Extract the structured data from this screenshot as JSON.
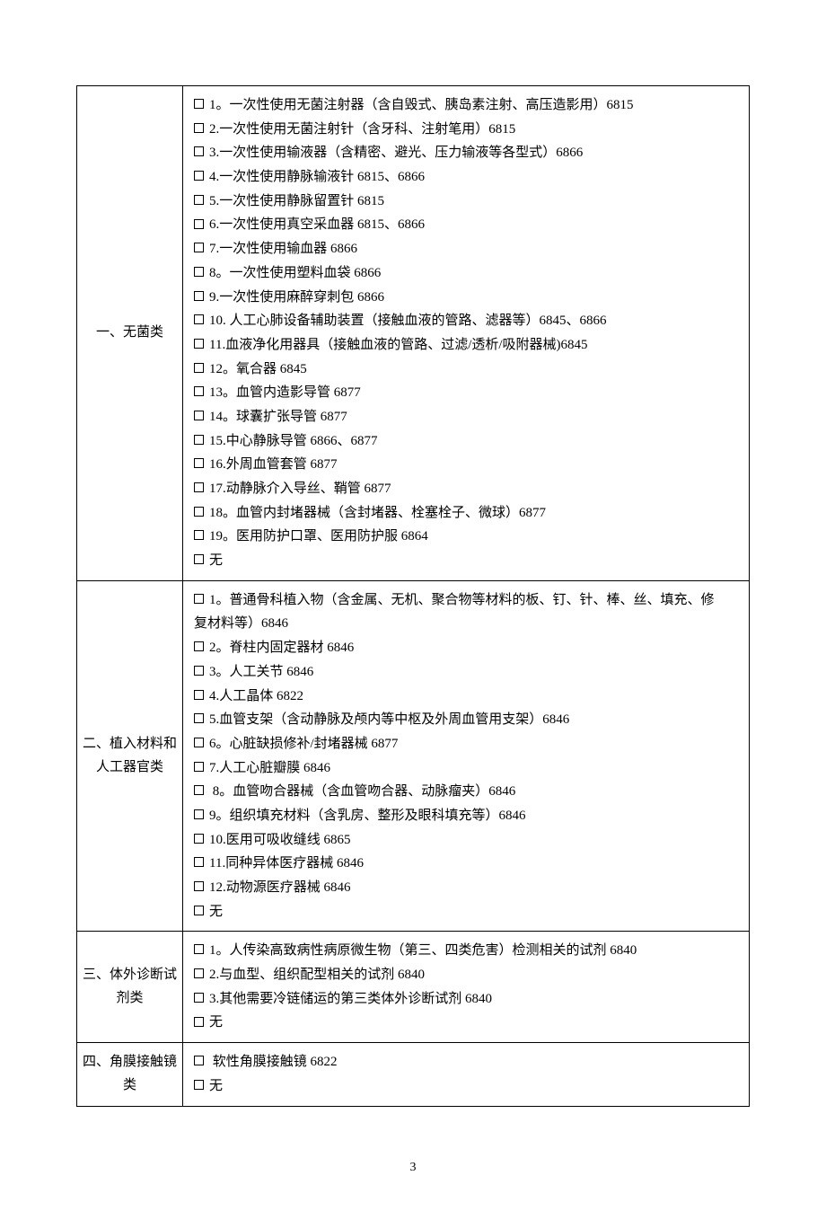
{
  "page_number": "3",
  "sections": [
    {
      "category": "一、无菌类",
      "items": [
        "1。一次性使用无菌注射器（含自毁式、胰岛素注射、高压造影用）6815",
        "2.一次性使用无菌注射针（含牙科、注射笔用）6815",
        "3.一次性使用输液器（含精密、避光、压力输液等各型式）6866",
        "4.一次性使用静脉输液针 6815、6866",
        "5.一次性使用静脉留置针 6815",
        "6.一次性使用真空采血器 6815、6866",
        "7.一次性使用输血器 6866",
        "8。一次性使用塑料血袋 6866",
        "9.一次性使用麻醉穿刺包 6866",
        "10. 人工心肺设备辅助装置（接触血液的管路、滤器等）6845、6866",
        "11.血液净化用器具（接触血液的管路、过滤/透析/吸附器械)6845",
        "12。氧合器 6845",
        "13。血管内造影导管 6877",
        "14。球囊扩张导管 6877",
        "15.中心静脉导管 6866、6877",
        "16.外周血管套管 6877",
        "17.动静脉介入导丝、鞘管 6877",
        "18。血管内封堵器械（含封堵器、栓塞栓子、微球）6877",
        "19。医用防护口罩、医用防护服 6864",
        "无"
      ]
    },
    {
      "category": "二、植入材料和人工器官类",
      "items_raw": [
        {
          "prefix": "",
          "text": "1。普通骨科植入物（含金属、无机、聚合物等材料的板、钉、针、棒、丝、填充、修",
          "has_checkbox": true
        },
        {
          "prefix": "",
          "text": "复材料等）6846",
          "has_checkbox": false,
          "continuation": true
        },
        {
          "prefix": "",
          "text": "2。脊柱内固定器材 6846",
          "has_checkbox": true
        },
        {
          "prefix": "",
          "text": "3。人工关节 6846",
          "has_checkbox": true
        },
        {
          "prefix": "",
          "text": "4.人工晶体 6822",
          "has_checkbox": true
        },
        {
          "prefix": "",
          "text": "5.血管支架（含动静脉及颅内等中枢及外周血管用支架）6846",
          "has_checkbox": true
        },
        {
          "prefix": "",
          "text": "6。心脏缺损修补/封堵器械 6877",
          "has_checkbox": true
        },
        {
          "prefix": "",
          "text": "7.人工心脏瓣膜 6846",
          "has_checkbox": true
        },
        {
          "prefix": " ",
          "text": "8。血管吻合器械（含血管吻合器、动脉瘤夹）6846",
          "has_checkbox": true
        },
        {
          "prefix": "",
          "text": "9。组织填充材料（含乳房、整形及眼科填充等）6846",
          "has_checkbox": true
        },
        {
          "prefix": "",
          "text": "10.医用可吸收缝线 6865",
          "has_checkbox": true
        },
        {
          "prefix": "",
          "text": "11.同种异体医疗器械 6846",
          "has_checkbox": true
        },
        {
          "prefix": "",
          "text": "12.动物源医疗器械 6846",
          "has_checkbox": true
        },
        {
          "prefix": "",
          "text": "无",
          "has_checkbox": true
        }
      ]
    },
    {
      "category": "三、体外诊断试剂类",
      "items": [
        "1。人传染高致病性病原微生物（第三、四类危害）检测相关的试剂 6840",
        "2.与血型、组织配型相关的试剂 6840",
        "3.其他需要冷链储运的第三类体外诊断试剂 6840",
        "无"
      ]
    },
    {
      "category": "四、角膜接触镜类",
      "items_raw": [
        {
          "prefix": " ",
          "text": "软性角膜接触镜 6822",
          "has_checkbox": true
        },
        {
          "prefix": "",
          "text": "无",
          "has_checkbox": true
        }
      ]
    }
  ]
}
